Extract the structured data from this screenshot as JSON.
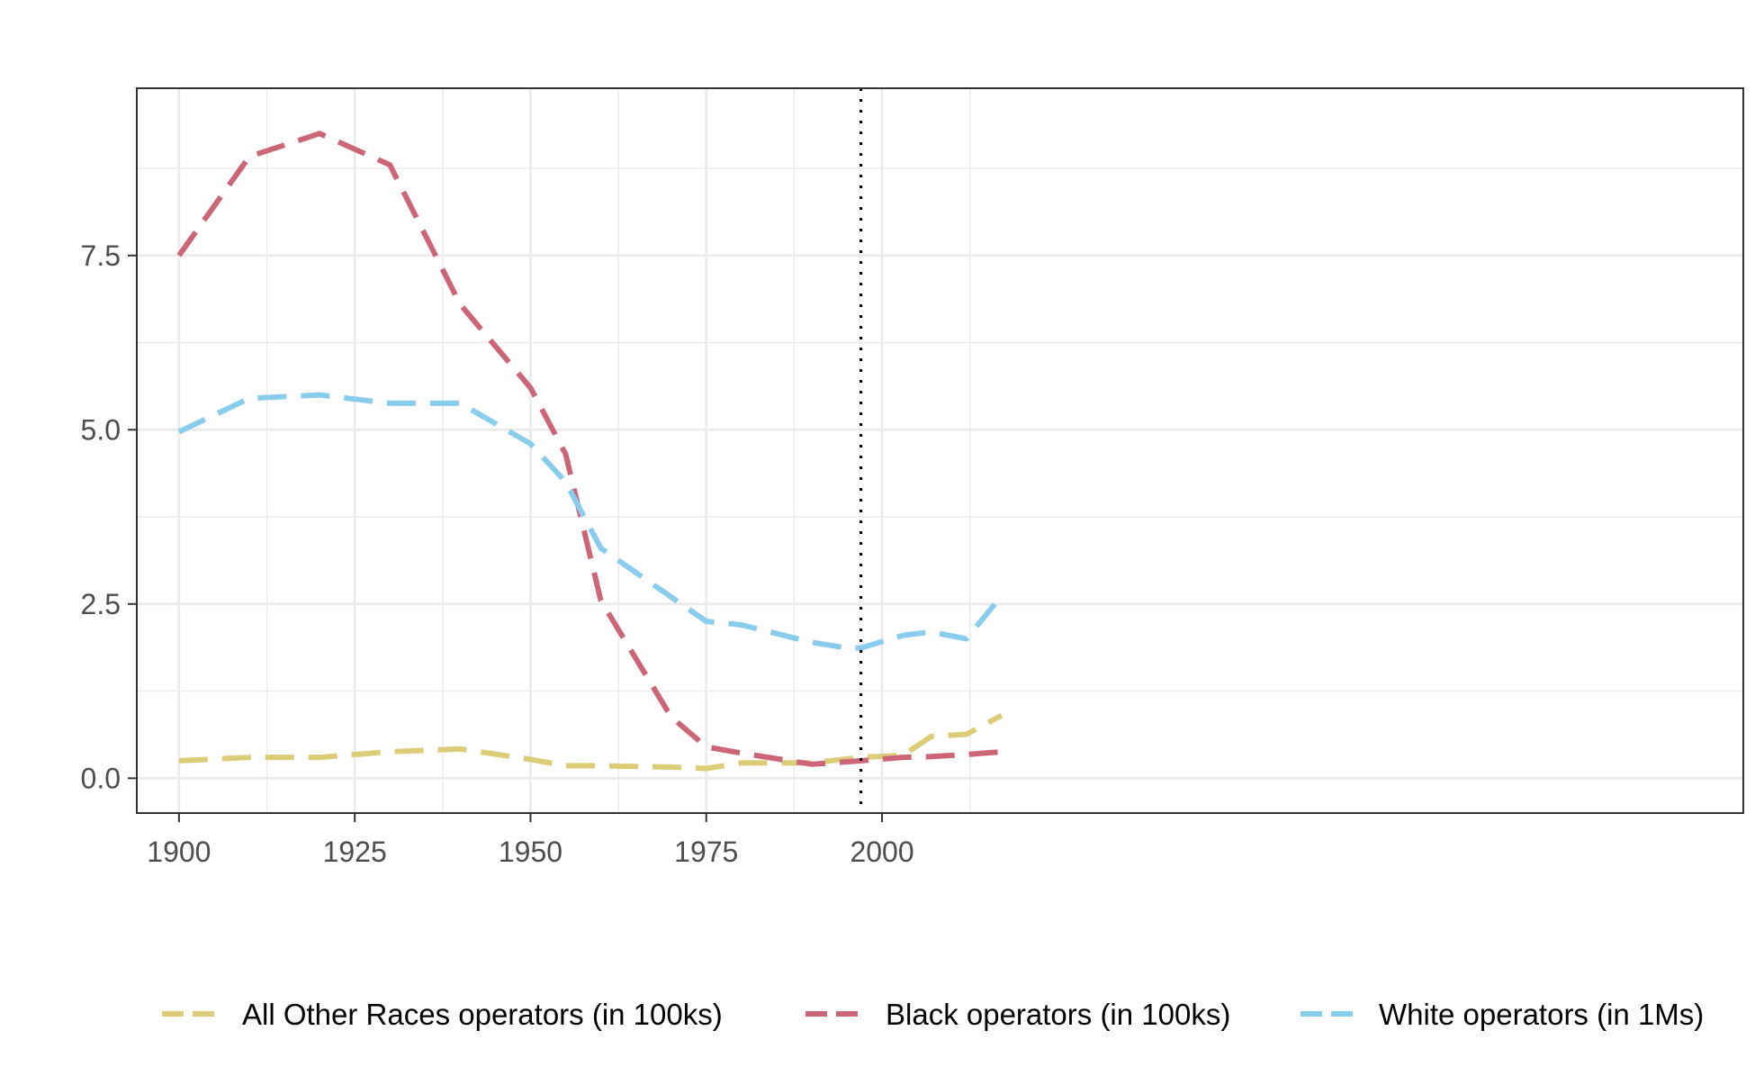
{
  "chart_data": {
    "type": "line",
    "title": "",
    "xlabel": "",
    "ylabel": "",
    "xlim": [
      1894,
      2122.5
    ],
    "ylim": [
      -0.5,
      9.9
    ],
    "x_ticks": [
      1900,
      1925,
      1950,
      1975,
      2000
    ],
    "x_tick_labels": [
      "1900",
      "1925",
      "1950",
      "1975",
      "2000"
    ],
    "x_minor_ticks": [
      1912.5,
      1937.5,
      1962.5,
      1987.5,
      2012.5
    ],
    "y_ticks": [
      0,
      2.5,
      5,
      7.5
    ],
    "y_tick_labels": [
      "0.0",
      "2.5",
      "5.0",
      "7.5"
    ],
    "y_minor_ticks": [
      1.25,
      3.75,
      6.25,
      8.75
    ],
    "grid": true,
    "legend_position": "bottom",
    "reference_line": {
      "x": 1997,
      "style": "dotted",
      "color": "#000000"
    },
    "series": [
      {
        "name": "All Other Races operators (in 100ks)",
        "color": "#DDCC77",
        "x": [
          1900,
          1910,
          1920,
          1930,
          1940,
          1950,
          1955,
          1960,
          1970,
          1975,
          1980,
          1990,
          1997,
          2003,
          2007,
          2012,
          2017
        ],
        "y": [
          0.25,
          0.3,
          0.3,
          0.38,
          0.42,
          0.27,
          0.18,
          0.18,
          0.16,
          0.14,
          0.22,
          0.22,
          0.3,
          0.33,
          0.6,
          0.63,
          0.9
        ]
      },
      {
        "name": "Black operators (in 100ks)",
        "color": "#CC6677",
        "x": [
          1900,
          1910,
          1920,
          1930,
          1940,
          1950,
          1955,
          1960,
          1970,
          1975,
          1980,
          1990,
          1997,
          2003,
          2007,
          2012,
          2017
        ],
        "y": [
          7.5,
          8.92,
          9.25,
          8.8,
          6.8,
          5.6,
          4.65,
          2.55,
          0.88,
          0.45,
          0.36,
          0.2,
          0.25,
          0.3,
          0.31,
          0.34,
          0.38
        ]
      },
      {
        "name": "White operators (in 1Ms)",
        "color": "#88CCEE",
        "x": [
          1900,
          1910,
          1920,
          1930,
          1940,
          1950,
          1955,
          1960,
          1970,
          1975,
          1980,
          1990,
          1995,
          1997,
          2003,
          2007,
          2012,
          2017
        ],
        "y": [
          4.97,
          5.45,
          5.5,
          5.38,
          5.38,
          4.8,
          4.25,
          3.3,
          2.6,
          2.25,
          2.2,
          1.95,
          1.87,
          1.87,
          2.05,
          2.1,
          2.0,
          2.62
        ]
      }
    ]
  }
}
